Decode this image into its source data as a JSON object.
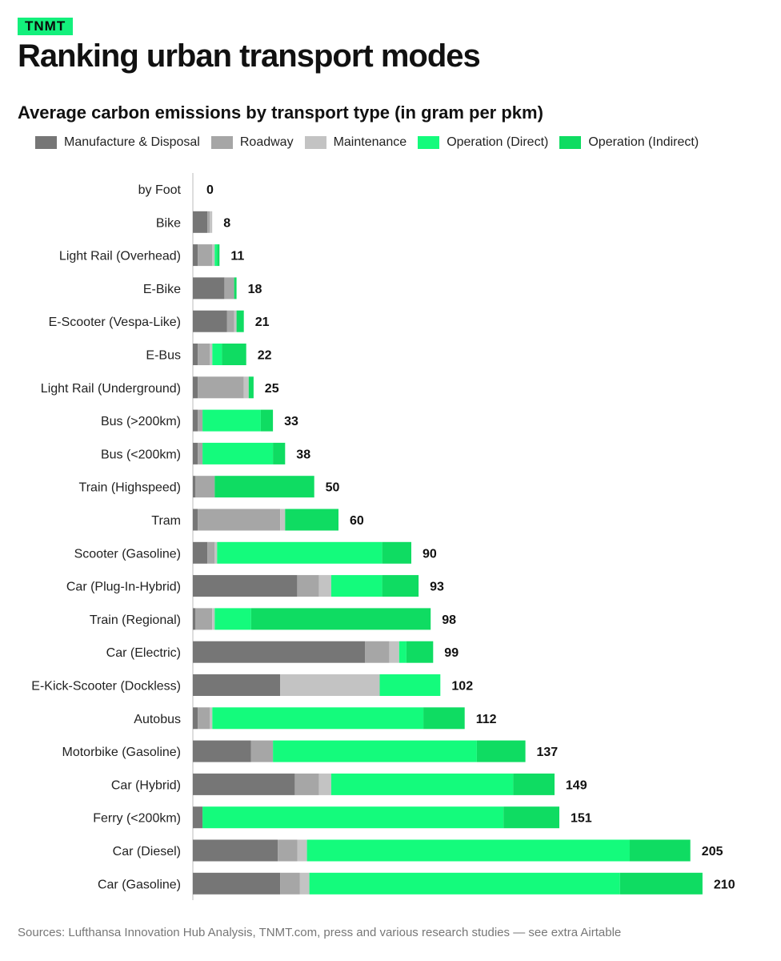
{
  "brand": "TNMT",
  "title": "Ranking urban transport modes",
  "colors": {
    "manufacture": "#767676",
    "roadway": "#a6a6a6",
    "maintenance": "#c3c3c3",
    "direct": "#14fb7c",
    "indirect": "#0fdc62",
    "axis": "#bbbbbb"
  },
  "source": "Sources: Lufthansa Innovation Hub Analysis, TNMT.com, press and various research studies — see extra Airtable",
  "chart_data": {
    "type": "bar",
    "orientation": "horizontal",
    "stacked": true,
    "title": "Average carbon emissions by transport type (in gram per pkm)",
    "xlabel": "",
    "ylabel": "",
    "xlim": [
      0,
      210
    ],
    "grid": false,
    "legend_position": "top",
    "categories": [
      "by Foot",
      "Bike",
      "Light Rail (Overhead)",
      "E-Bike",
      "E-Scooter (Vespa-Like)",
      "E-Bus",
      "Light Rail (Underground)",
      "Bus (>200km)",
      "Bus (<200km)",
      "Train (Highspeed)",
      "Tram",
      "Scooter (Gasoline)",
      "Car (Plug-In-Hybrid)",
      "Train (Regional)",
      "Car (Electric)",
      "E-Kick-Scooter (Dockless)",
      "Autobus",
      "Motorbike (Gasoline)",
      "Car (Hybrid)",
      "Ferry (<200km)",
      "Car (Diesel)",
      "Car (Gasoline)"
    ],
    "totals": [
      0,
      8,
      11,
      18,
      21,
      22,
      25,
      33,
      38,
      50,
      60,
      90,
      93,
      98,
      99,
      102,
      112,
      137,
      149,
      151,
      205,
      210
    ],
    "series": [
      {
        "name": "Manufacture & Disposal",
        "color": "#767676",
        "values": [
          0,
          6,
          2,
          13,
          14,
          2,
          2,
          2,
          2,
          1,
          2,
          6,
          43,
          1,
          71,
          36,
          2,
          24,
          42,
          4,
          35,
          36
        ]
      },
      {
        "name": "Roadway",
        "color": "#a6a6a6",
        "values": [
          0,
          1,
          6,
          4,
          3,
          5,
          19,
          2,
          2,
          8,
          34,
          3,
          9,
          7,
          10,
          0,
          5,
          9,
          10,
          0,
          8,
          8
        ]
      },
      {
        "name": "Maintenance",
        "color": "#c3c3c3",
        "values": [
          0,
          1,
          1,
          0,
          1,
          1,
          2,
          0,
          0,
          0,
          2,
          1,
          5,
          1,
          4,
          41,
          1,
          0,
          5,
          0,
          4,
          4
        ]
      },
      {
        "name": "Operation (Direct)",
        "color": "#14fb7c",
        "values": [
          0,
          0,
          1,
          0,
          0,
          4,
          0,
          24,
          29,
          0,
          0,
          68,
          21,
          15,
          3,
          25,
          87,
          84,
          75,
          124,
          133,
          128
        ]
      },
      {
        "name": "Operation (Indirect)",
        "color": "#0fdc62",
        "values": [
          0,
          0,
          1,
          1,
          3,
          10,
          2,
          5,
          5,
          41,
          22,
          12,
          15,
          74,
          11,
          0,
          17,
          20,
          17,
          23,
          25,
          34
        ]
      }
    ]
  }
}
